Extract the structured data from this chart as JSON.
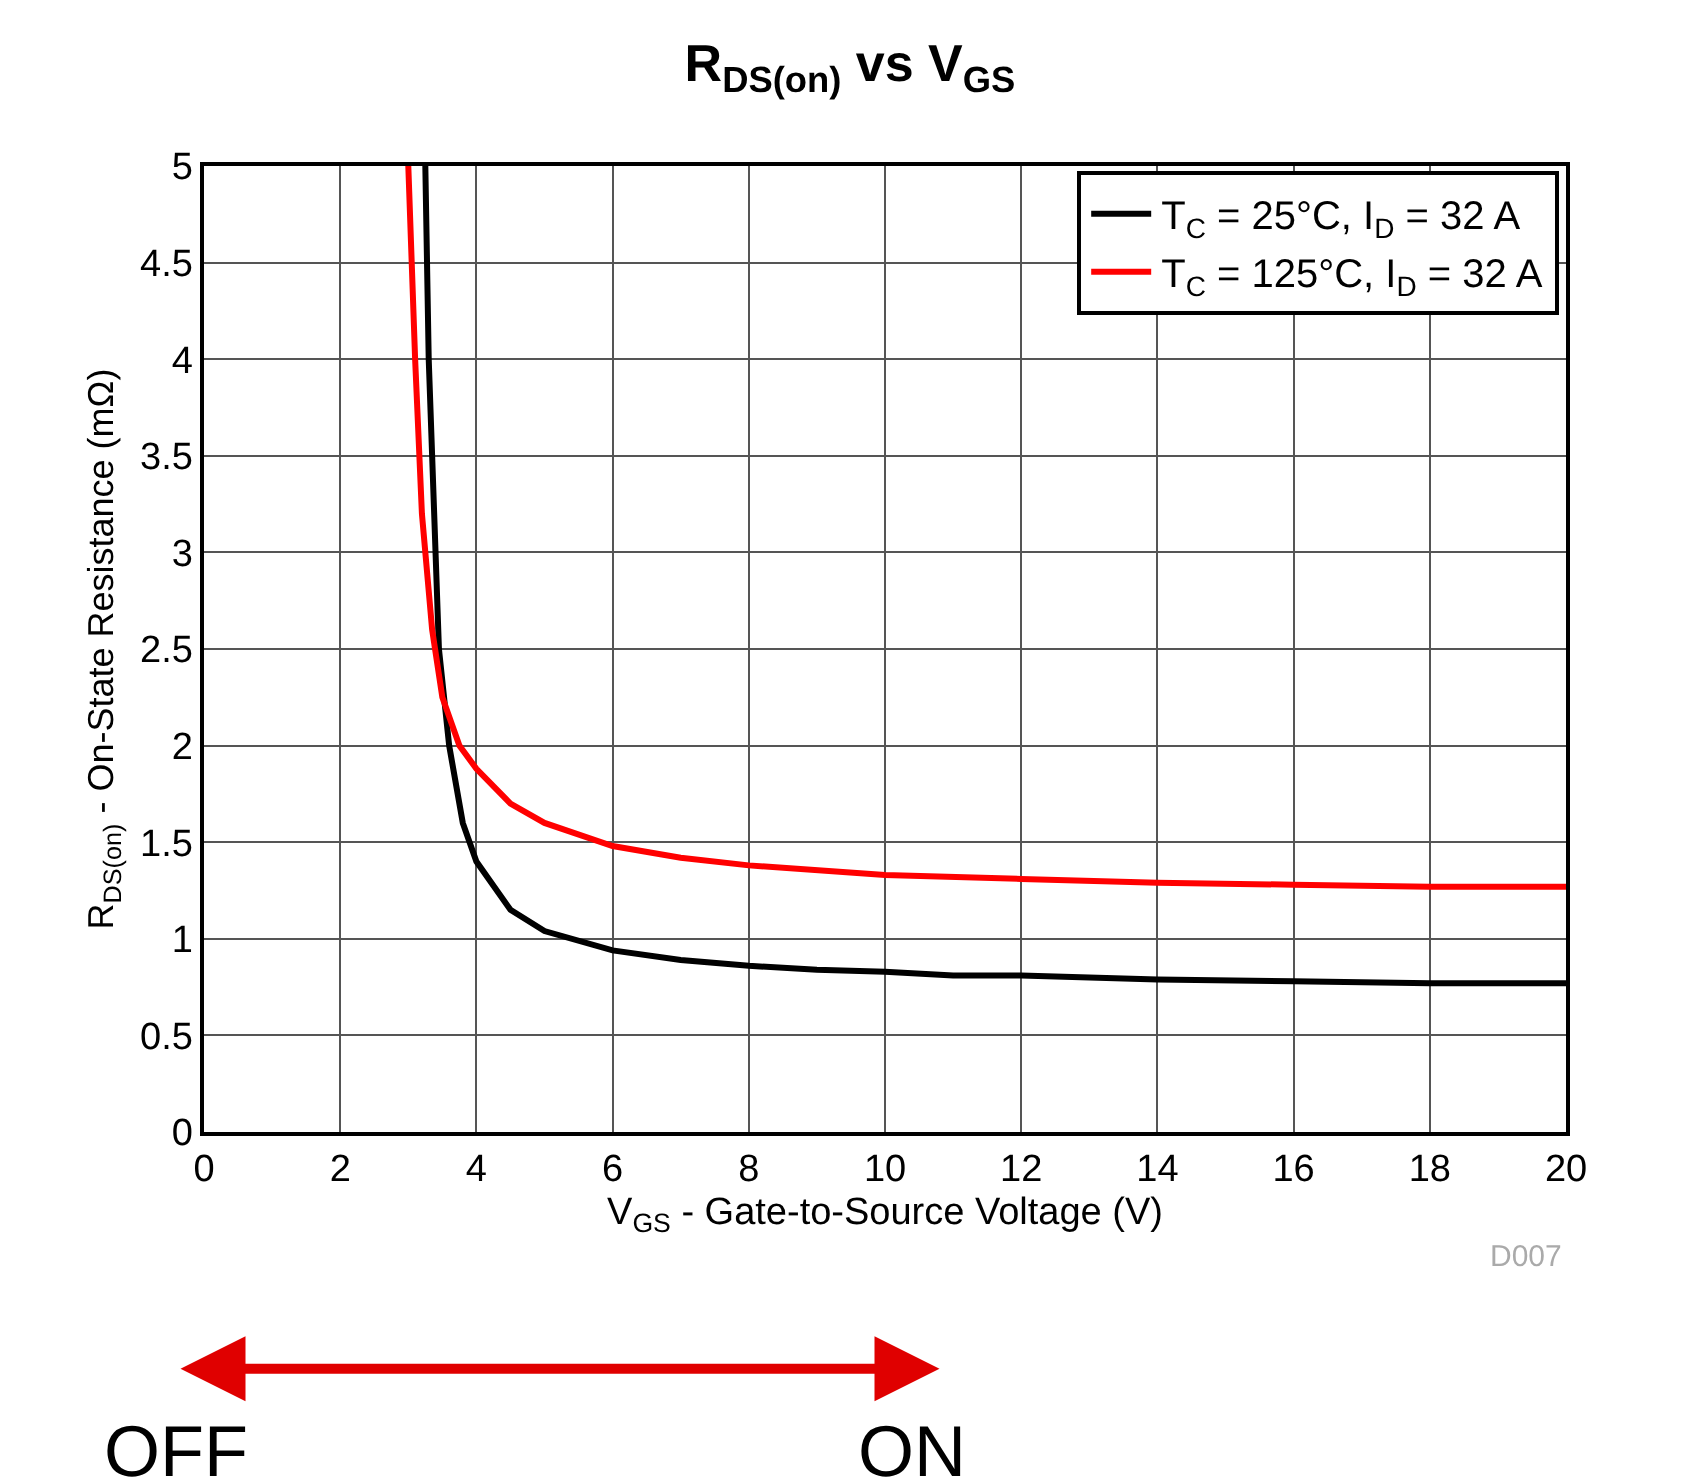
{
  "chart_data": {
    "type": "line",
    "title": "R$_{DS(on)}$ vs V$_{GS}$",
    "xlabel": "V$_{GS}$ - Gate-to-Source Voltage (V)",
    "ylabel": "R$_{DS(on)}$ - On-State Resistance (mΩ)",
    "series": [
      {
        "name": "T$_{C}$ = 25°C, I$_{D}$ = 32 A",
        "color": "#000000",
        "x": [
          3.25,
          3.3,
          3.35,
          3.45,
          3.6,
          3.8,
          4,
          4.5,
          5,
          6,
          7,
          8,
          9,
          10,
          11,
          12,
          14,
          16,
          18,
          20
        ],
        "values": [
          5,
          4,
          3.5,
          2.5,
          2.0,
          1.6,
          1.4,
          1.15,
          1.04,
          0.94,
          0.89,
          0.86,
          0.84,
          0.83,
          0.81,
          0.81,
          0.79,
          0.78,
          0.77,
          0.77
        ]
      },
      {
        "name": "T$_{C}$ = 125°C, I$_{D}$ = 32 A",
        "color": "#ff0000",
        "x": [
          3.0,
          3.1,
          3.2,
          3.35,
          3.5,
          3.75,
          4,
          4.5,
          5,
          6,
          7,
          8,
          10,
          12,
          14,
          16,
          18,
          20
        ],
        "values": [
          5,
          4,
          3.2,
          2.6,
          2.25,
          2.0,
          1.88,
          1.7,
          1.6,
          1.48,
          1.42,
          1.38,
          1.33,
          1.31,
          1.29,
          1.28,
          1.27,
          1.27
        ]
      }
    ],
    "xlim": [
      0,
      20
    ],
    "xticks": [
      0,
      2,
      4,
      6,
      8,
      10,
      12,
      14,
      16,
      18,
      20
    ],
    "ylim": [
      0,
      5
    ],
    "yticks": [
      0,
      0.5,
      1,
      1.5,
      2,
      2.5,
      3,
      3.5,
      4,
      4.5,
      5
    ],
    "grid": true,
    "legend": "top right",
    "marker": "none",
    "line_style": "solid",
    "annotations": [
      "D007",
      "OFF",
      "ON"
    ]
  }
}
